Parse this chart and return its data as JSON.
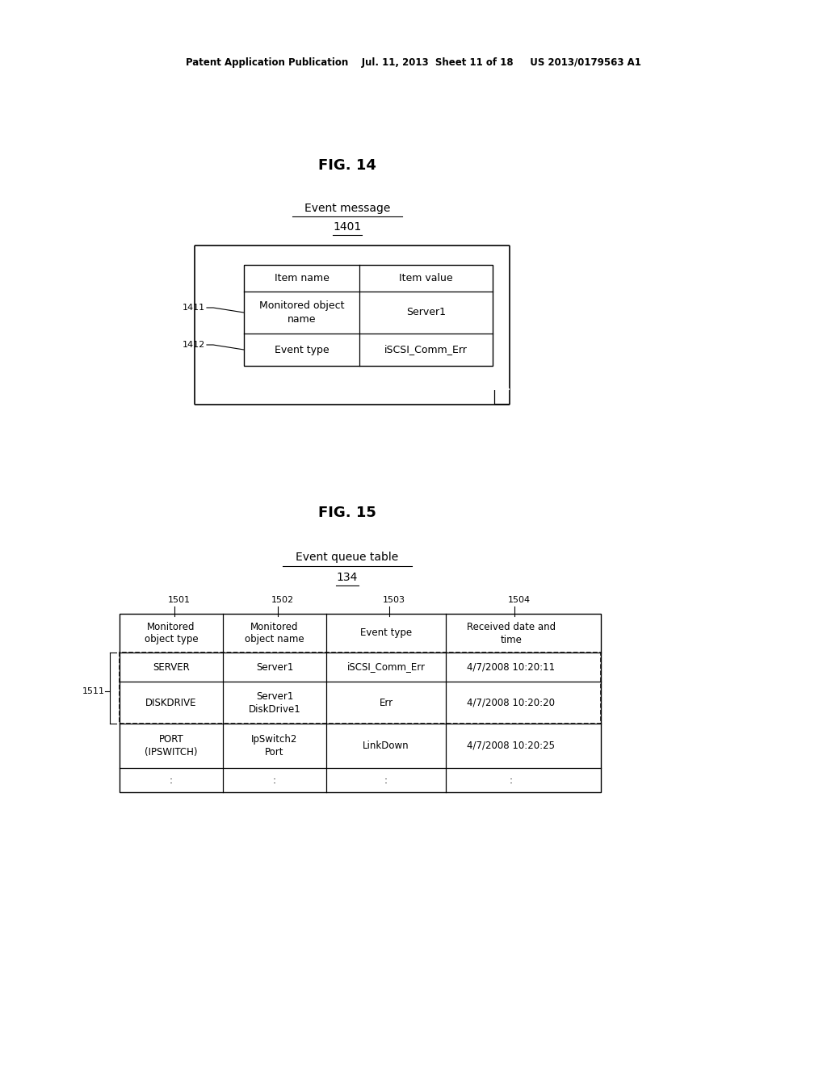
{
  "header_text": "Patent Application Publication    Jul. 11, 2013  Sheet 11 of 18     US 2013/0179563 A1",
  "fig14_title": "FIG. 14",
  "fig14_label": "Event message",
  "fig14_label2": "1401",
  "fig14_table_headers": [
    "Item name",
    "Item value"
  ],
  "fig14_table_rows": [
    [
      "Monitored object\nname",
      "Server1"
    ],
    [
      "Event type",
      "iSCSI_Comm_Err"
    ]
  ],
  "fig14_side_labels": [
    "1411",
    "1412"
  ],
  "fig15_title": "FIG. 15",
  "fig15_label": "Event queue table",
  "fig15_label2": "134",
  "fig15_col_labels": [
    "1501",
    "1502",
    "1503",
    "1504"
  ],
  "fig15_table_headers": [
    "Monitored\nobject type",
    "Monitored\nobject name",
    "Event type",
    "Received date and\ntime"
  ],
  "fig15_table_rows": [
    [
      "SERVER",
      "Server1",
      "iSCSI_Comm_Err",
      "4/7/2008 10:20:11"
    ],
    [
      "DISKDRIVE",
      "Server1\nDiskDrive1",
      "Err",
      "4/7/2008 10:20:20"
    ],
    [
      "PORT\n(IPSWITCH)",
      "IpSwitch2\nPort",
      "LinkDown",
      "4/7/2008 10:20:25"
    ],
    [
      ":",
      ":",
      ":",
      ":"
    ]
  ],
  "fig15_row_label": "1511",
  "bg_color": "#ffffff",
  "text_color": "#000000",
  "font_size": 9,
  "title_font_size": 13
}
